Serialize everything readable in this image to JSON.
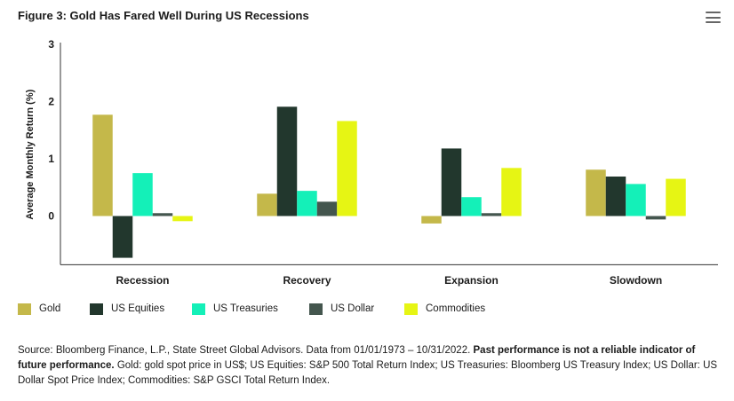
{
  "header": {
    "title": "Figure 3: Gold Has Fared Well During US Recessions",
    "menu_icon": "hamburger-menu-icon"
  },
  "chart_data": {
    "type": "bar",
    "title": "Figure 3: Gold Has Fared Well During US Recessions",
    "xlabel": "",
    "ylabel": "Average Monthly Return (%)",
    "ylim": [
      -0.85,
      3
    ],
    "yticks": [
      "3",
      "2",
      "1",
      "0"
    ],
    "grid": false,
    "legend_position": "bottom",
    "categories": [
      "Recession",
      "Recovery",
      "Expansion",
      "Slowdown"
    ],
    "series": [
      {
        "name": "Gold",
        "color": "#c4b84a",
        "values": [
          1.77,
          0.39,
          -0.13,
          0.81
        ]
      },
      {
        "name": "US Equities",
        "color": "#22372d",
        "values": [
          -0.73,
          1.91,
          1.18,
          0.69
        ]
      },
      {
        "name": "US Treasuries",
        "color": "#14f0b8",
        "values": [
          0.75,
          0.44,
          0.33,
          0.56
        ]
      },
      {
        "name": "US Dollar",
        "color": "#44564e",
        "values": [
          0.05,
          0.25,
          0.05,
          -0.06
        ]
      },
      {
        "name": "Commodities",
        "color": "#e6f514",
        "values": [
          -0.09,
          1.66,
          0.84,
          0.65
        ]
      }
    ]
  },
  "source": {
    "prefix": "Source: Bloomberg Finance, L.P., State Street Global Advisors. Data from 01/01/1973 – 10/31/2022.",
    "bold": "Past performance is not a reliable indicator of future performance.",
    "suffix": "Gold: gold spot price in US$; US Equities: S&P 500 Total Return Index; US Treasuries: Bloomberg US Treasury Index; US Dollar: US Dollar Spot Price Index; Commodities: S&P GSCI Total Return Index."
  }
}
